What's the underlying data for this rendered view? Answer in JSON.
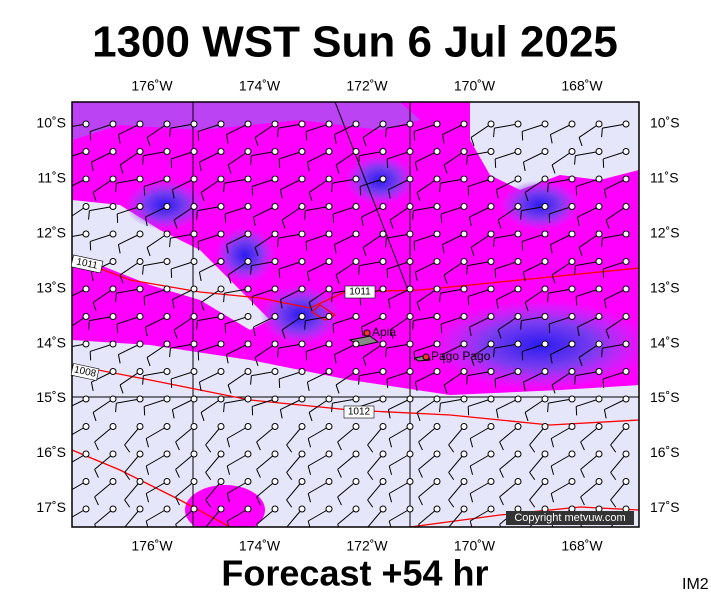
{
  "header": {
    "title": "1300 WST Sun 6 Jul 2025"
  },
  "map": {
    "lon_labels": [
      "176˚W",
      "174˚W",
      "172˚W",
      "170˚W",
      "168˚W"
    ],
    "lat_labels": [
      "10˚S",
      "11˚S",
      "12˚S",
      "13˚S",
      "14˚S",
      "15˚S",
      "16˚S",
      "17˚S"
    ],
    "places": [
      "Apia",
      "Pago Pago"
    ],
    "isobar_labels": [
      "1011",
      "1011",
      "1012",
      "1008"
    ],
    "copyright": "Copyright metvuw.com"
  },
  "footer": {
    "forecast": "Forecast +54 hr",
    "code": "IM2"
  }
}
